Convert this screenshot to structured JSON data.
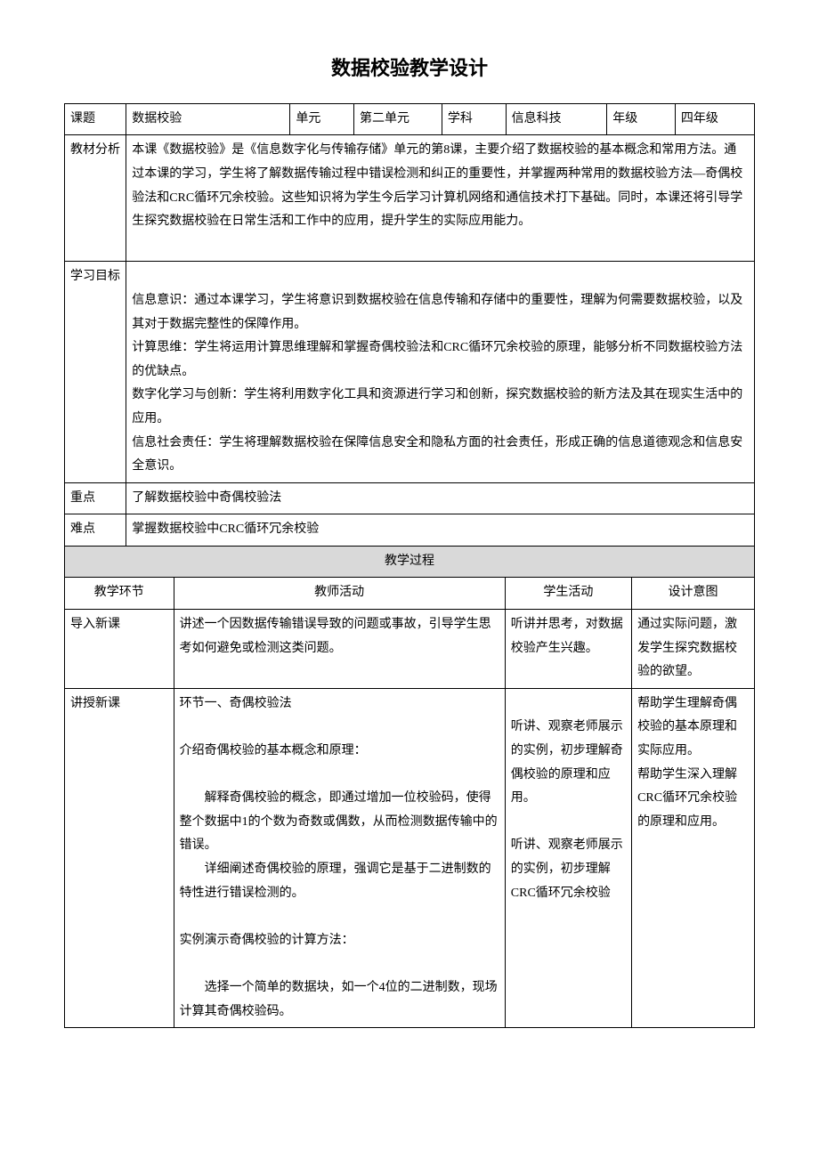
{
  "title": "数据校验教学设计",
  "labels": {
    "topic": "课题",
    "unit": "单元",
    "subject": "学科",
    "grade": "年级",
    "materialAnalysis": "教材分析",
    "learningGoals": "学习目标",
    "keyPoint": "重点",
    "difficulty": "难点",
    "teachingProcess": "教学过程",
    "segment": "教学环节",
    "teacherActivity": "教师活动",
    "studentActivity": "学生活动",
    "designIntent": "设计意图",
    "introLesson": "导入新课",
    "teachLesson": "讲授新课"
  },
  "values": {
    "topic": "数据校验",
    "unit": "第二单元",
    "subject": "信息科技",
    "grade": "四年级"
  },
  "materialAnalysis": "本课《数据校验》是《信息数字化与传输存储》单元的第8课，主要介绍了数据校验的基本概念和常用方法。通过本课的学习，学生将了解数据传输过程中错误检测和纠正的重要性，并掌握两种常用的数据校验方法—奇偶校验法和CRC循环冗余校验。这些知识将为学生今后学习计算机网络和通信技术打下基础。同时，本课还将引导学生探究数据校验在日常生活和工作中的应用，提升学生的实际应用能力。",
  "learningGoals": {
    "p1": "信息意识：通过本课学习，学生将意识到数据校验在信息传输和存储中的重要性，理解为何需要数据校验，以及其对于数据完整性的保障作用。",
    "p2": "计算思维：学生将运用计算思维理解和掌握奇偶校验法和CRC循环冗余校验的原理，能够分析不同数据校验方法的优缺点。",
    "p3": "数字化学习与创新：学生将利用数字化工具和资源进行学习和创新，探究数据校验的新方法及其在现实生活中的应用。",
    "p4": "信息社会责任：学生将理解数据校验在保障信息安全和隐私方面的社会责任，形成正确的信息道德观念和信息安全意识。"
  },
  "keyPoint": "了解数据校验中奇偶校验法",
  "difficulty": "掌握数据校验中CRC循环冗余校验",
  "intro": {
    "teacher": "讲述一个因数据传输错误导致的问题或事故，引导学生思考如何避免或检测这类问题。",
    "student": "听讲并思考，对数据校验产生兴趣。",
    "intent": "通过实际问题，激发学生探究数据校验的欲望。"
  },
  "teach": {
    "teacher": {
      "t1": "环节一、奇偶校验法",
      "t2": "介绍奇偶校验的基本概念和原理：",
      "t3": "解释奇偶校验的概念，即通过增加一位校验码，使得整个数据中1的个数为奇数或偶数，从而检测数据传输中的错误。",
      "t4": "详细阐述奇偶校验的原理，强调它是基于二进制数的特性进行错误检测的。",
      "t5": "实例演示奇偶校验的计算方法：",
      "t6": "选择一个简单的数据块，如一个4位的二进制数，现场计算其奇偶校验码。"
    },
    "student": {
      "s1": "听讲、观察老师展示的实例，初步理解奇偶校验的原理和应用。",
      "s2": "听讲、观察老师展示的实例，初步理解CRC循环冗余校验"
    },
    "intent": {
      "i1": "帮助学生理解奇偶校验的基本原理和实际应用。",
      "i2": "帮助学生深入理解CRC循环冗余校验的原理和应用。"
    }
  }
}
